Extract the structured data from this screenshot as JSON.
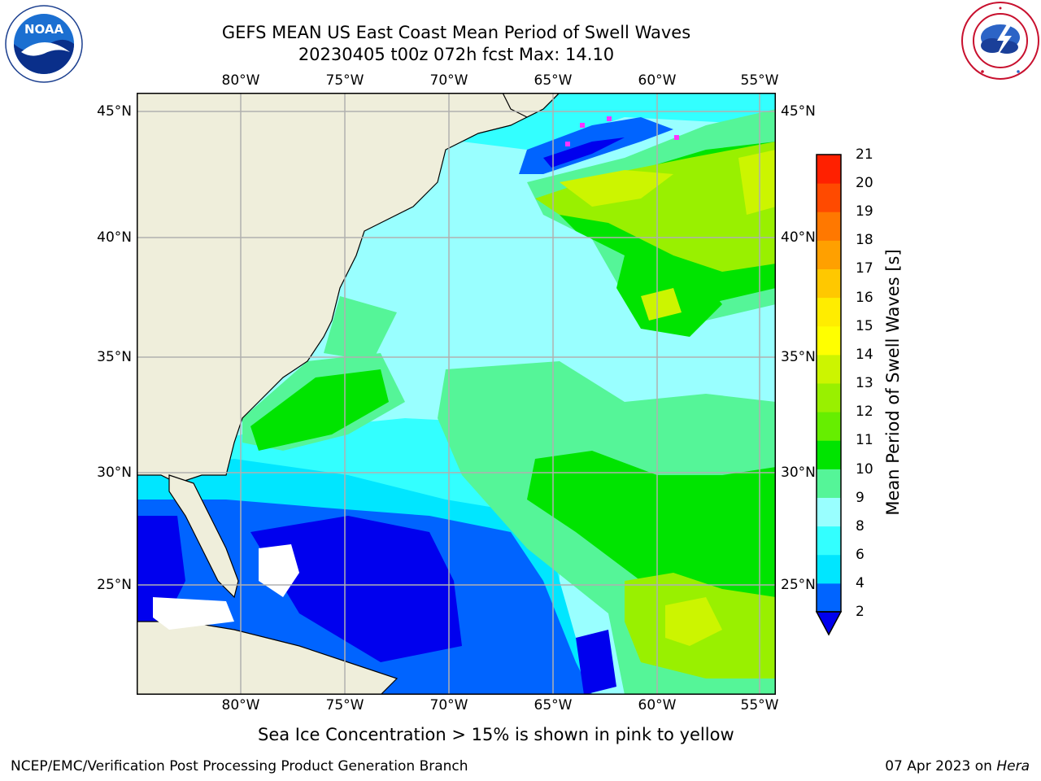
{
  "title": {
    "line1": "GEFS MEAN US East Coast Mean Period of Swell Waves",
    "line2": "20230405 t00z 072h fcst   Max: 14.10"
  },
  "logos": {
    "noaa": {
      "text": "NOAA",
      "ring_text": "NATIONAL OCEANIC AND ATMOSPHERIC ADMINISTRATION · U.S. DEPARTMENT OF COMMERCE"
    },
    "nws": {
      "ring_text": "NATIONAL WEATHER SERVICE"
    }
  },
  "axes": {
    "lon_ticks": [
      "80°W",
      "75°W",
      "70°W",
      "65°W",
      "60°W",
      "55°W"
    ],
    "lat_ticks": [
      "45°N",
      "40°N",
      "35°N",
      "30°N",
      "25°N"
    ],
    "lon_range": [
      -85,
      -54.5
    ],
    "lat_range": [
      20,
      46
    ],
    "grid": true
  },
  "colorbar": {
    "label": "Mean Period of Swell Waves [s]",
    "ticks": [
      "21",
      "20",
      "19",
      "18",
      "17",
      "16",
      "15",
      "14",
      "13",
      "12",
      "11",
      "10",
      "9",
      "8",
      "6",
      "4",
      "2"
    ],
    "levels": [
      2,
      4,
      6,
      8,
      9,
      10,
      11,
      12,
      13,
      14,
      15,
      16,
      17,
      18,
      19,
      20,
      21
    ],
    "colors": [
      "#0064ff",
      "#00e6ff",
      "#33ffff",
      "#99ffff",
      "#55f598",
      "#00e400",
      "#66ee00",
      "#99f000",
      "#ccf500",
      "#ffff00",
      "#ffed00",
      "#ffc800",
      "#ffa000",
      "#ff7800",
      "#ff4a00",
      "#ff2000"
    ],
    "under_color": "#0000ee"
  },
  "colors": {
    "land": "#efeedb",
    "grid": "#b0b0b0"
  },
  "note": "Sea Ice Concentration > 15% is shown in pink to yellow",
  "footer": {
    "left": "NCEP/EMC/Verification Post Processing Product Generation Branch",
    "date": "07 Apr 2023 on ",
    "machine": "Hera"
  }
}
